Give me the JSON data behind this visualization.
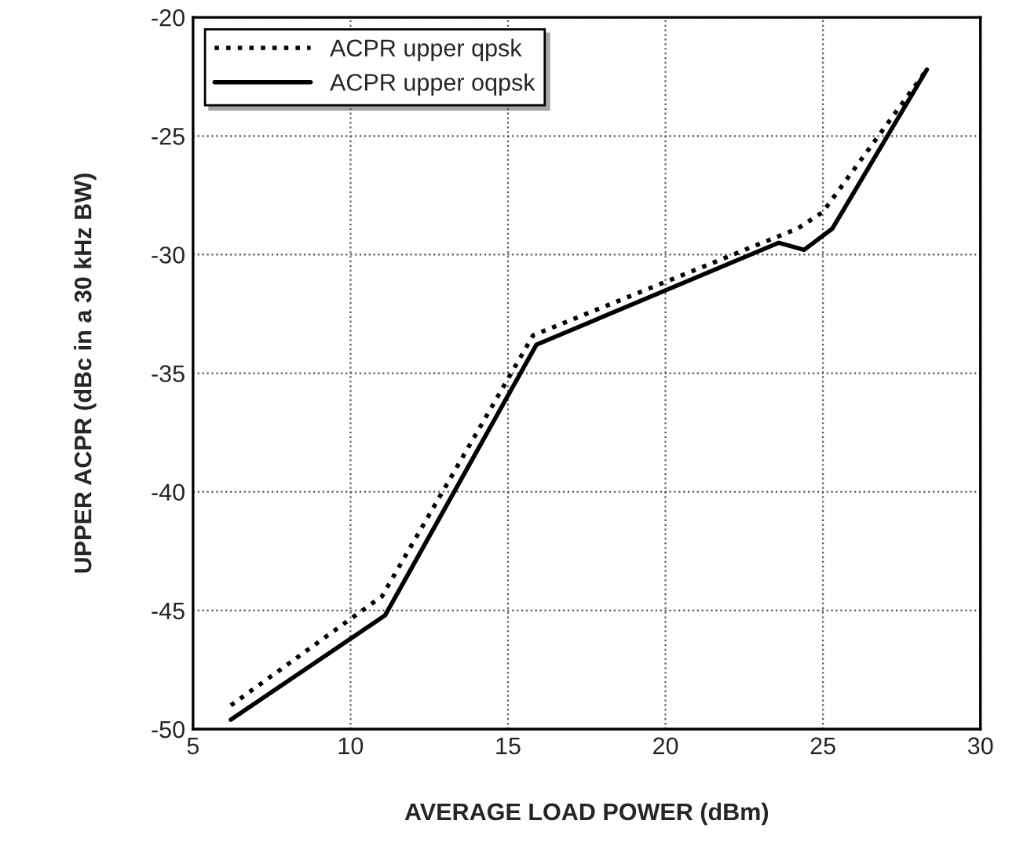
{
  "chart_data": {
    "type": "line",
    "xlabel": "AVERAGE LOAD POWER (dBm)",
    "ylabel": "UPPER ACPR (dBc in a 30 kHz BW)",
    "xlim": [
      5,
      30
    ],
    "xticks": [
      5,
      10,
      15,
      20,
      25,
      30
    ],
    "ylim": [
      -50,
      -20
    ],
    "yticks": [
      -50,
      -45,
      -40,
      -35,
      -30,
      -25,
      -20
    ],
    "grid": true,
    "legend": "top left",
    "series": [
      {
        "name": "ACPR upper qpsk",
        "color": "#000000",
        "line_style": "dotted",
        "x": [
          6.2,
          11.0,
          15.8,
          24.2,
          25.0,
          28.3
        ],
        "values": [
          -49.0,
          -44.4,
          -33.4,
          -28.9,
          -28.2,
          -22.2
        ]
      },
      {
        "name": "ACPR upper oqpsk",
        "color": "#000000",
        "line_style": "solid",
        "x": [
          6.2,
          11.1,
          15.9,
          23.6,
          24.4,
          25.3,
          28.3
        ],
        "values": [
          -49.6,
          -45.2,
          -33.8,
          -29.5,
          -29.8,
          -28.9,
          -22.2
        ]
      }
    ]
  }
}
